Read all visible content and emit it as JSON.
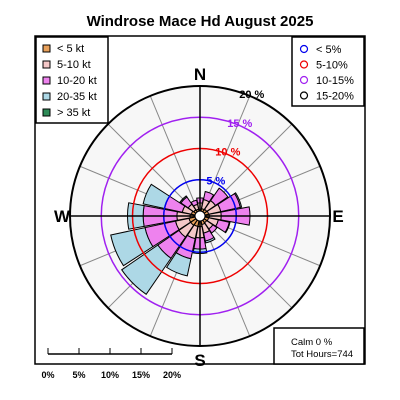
{
  "chart_data": {
    "type": "windrose",
    "title": "Windrose  Mace Hd August 2025",
    "directions": [
      "N",
      "NNE",
      "NE",
      "ENE",
      "E",
      "ESE",
      "SE",
      "SSE",
      "S",
      "SSW",
      "SW",
      "WSW",
      "W",
      "WNW",
      "NW",
      "NNW"
    ],
    "compass_labels": {
      "N": "N",
      "E": "E",
      "S": "S",
      "W": "W"
    },
    "speed_bins": [
      {
        "label": "< 5  kt",
        "color": "#e8a05a",
        "values": [
          0.3,
          0.4,
          0.5,
          0.6,
          0.7,
          0.6,
          0.5,
          0.6,
          0.9,
          0.9,
          1.0,
          1.0,
          0.8,
          0.6,
          0.4,
          0.3
        ]
      },
      {
        "label": "5-10 kt",
        "color": "#f4c7c7",
        "values": [
          1.0,
          1.5,
          1.7,
          2.0,
          1.9,
          1.6,
          1.2,
          1.4,
          1.8,
          2.0,
          2.3,
          2.2,
          2.1,
          1.5,
          1.1,
          0.8
        ]
      },
      {
        "label": "10-20 kt",
        "color": "#ee82ee",
        "values": [
          0.8,
          1.3,
          2.4,
          3.2,
          4.6,
          1.8,
          0.8,
          1.3,
          1.8,
          3.3,
          4.1,
          5.0,
          5.4,
          2.9,
          1.4,
          0.7
        ]
      },
      {
        "label": "20-35 kt",
        "color": "#add8e6",
        "values": [
          0.0,
          0.0,
          0.0,
          0.2,
          0.0,
          0.1,
          0.0,
          0.3,
          0.7,
          2.8,
          7.0,
          5.6,
          2.5,
          3.5,
          0.2,
          0.0
        ]
      },
      {
        "label": "> 35 kt",
        "color": "#2e8b57",
        "values": [
          0,
          0,
          0,
          0,
          0,
          0,
          0,
          0,
          0,
          0,
          0,
          0,
          0,
          0,
          0,
          0
        ]
      }
    ],
    "rings": [
      {
        "label": "< 5%",
        "value": 5,
        "color": "#0000ee",
        "ring_label": "5 %"
      },
      {
        "label": "5-10%",
        "value": 10,
        "color": "#ee0000",
        "ring_label": "10 %"
      },
      {
        "label": "10-15%",
        "value": 15,
        "color": "#a020f0",
        "ring_label": "15 %"
      },
      {
        "label": "15-20%",
        "value": 20,
        "color": "#000000",
        "ring_label": "20 %"
      }
    ],
    "scale_bar": [
      "0%",
      "5%",
      "10%",
      "15%",
      "20%"
    ],
    "calm": "Calm 0 %",
    "total_hours": "Tot Hours=744"
  }
}
